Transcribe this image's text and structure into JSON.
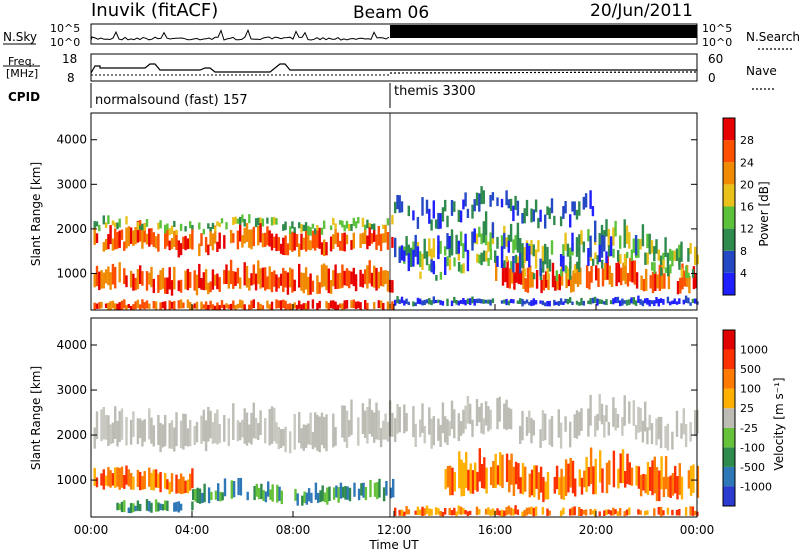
{
  "header": {
    "station": "Inuvik (fitACF)",
    "beam": "Beam 06",
    "date": "20/Jun/2011"
  },
  "top_panels": {
    "nsky_label": "N.Sky",
    "nsky_ticks": [
      "10^5",
      "10^0"
    ],
    "nsearch_label": "N.Search",
    "nsearch_ticks": [
      "10^5",
      "10^0"
    ],
    "freq_label_1": "Freq.",
    "freq_label_2": "[MHz]",
    "freq_ticks": [
      "18",
      "8"
    ],
    "nave_label": "Nave",
    "nave_ticks": [
      "60",
      "0"
    ],
    "cpid_label": "CPID",
    "cpid_segments": [
      {
        "start_hour": 0,
        "label": "normalsound (fast) 157"
      },
      {
        "start_hour": 12,
        "label": "themis 3300"
      }
    ]
  },
  "chart_data": [
    {
      "type": "heatmap",
      "name": "power",
      "ylabel": "Slant Range [km]",
      "yticks": [
        "4000",
        "3000",
        "2000",
        "1000"
      ],
      "ylim": [
        180,
        4600
      ],
      "xlim_hours": [
        0,
        24
      ],
      "colorbar_label": "Power [dB]",
      "colorbar_ticks": [
        "28",
        "24",
        "20",
        "16",
        "12",
        "8",
        "4"
      ],
      "colorbar_colors": [
        "#1f1fff",
        "#2548c4",
        "#2f8a4d",
        "#5cc23b",
        "#e8c11a",
        "#f08a00",
        "#ff5000",
        "#e80000"
      ]
    },
    {
      "type": "heatmap",
      "name": "velocity",
      "ylabel": "Slant Range [km]",
      "yticks": [
        "4000",
        "3000",
        "2000",
        "1000"
      ],
      "ylim": [
        180,
        4600
      ],
      "xlim_hours": [
        0,
        24
      ],
      "colorbar_label": "Velocity [m s⁻¹]",
      "colorbar_ticks": [
        "1000",
        "500",
        "100",
        "25",
        "-25",
        "-100",
        "-500",
        "-1000"
      ],
      "colorbar_colors": [
        "#2b3bd0",
        "#2f78b8",
        "#2f8a4d",
        "#66c23a",
        "#bcbcb4",
        "#ffb000",
        "#ff7a00",
        "#ff3000",
        "#e00000"
      ]
    }
  ],
  "xaxis": {
    "ticks": [
      "00:00",
      "04:00",
      "08:00",
      "12:00",
      "16:00",
      "20:00",
      "00:00"
    ],
    "label": "Time UT"
  }
}
